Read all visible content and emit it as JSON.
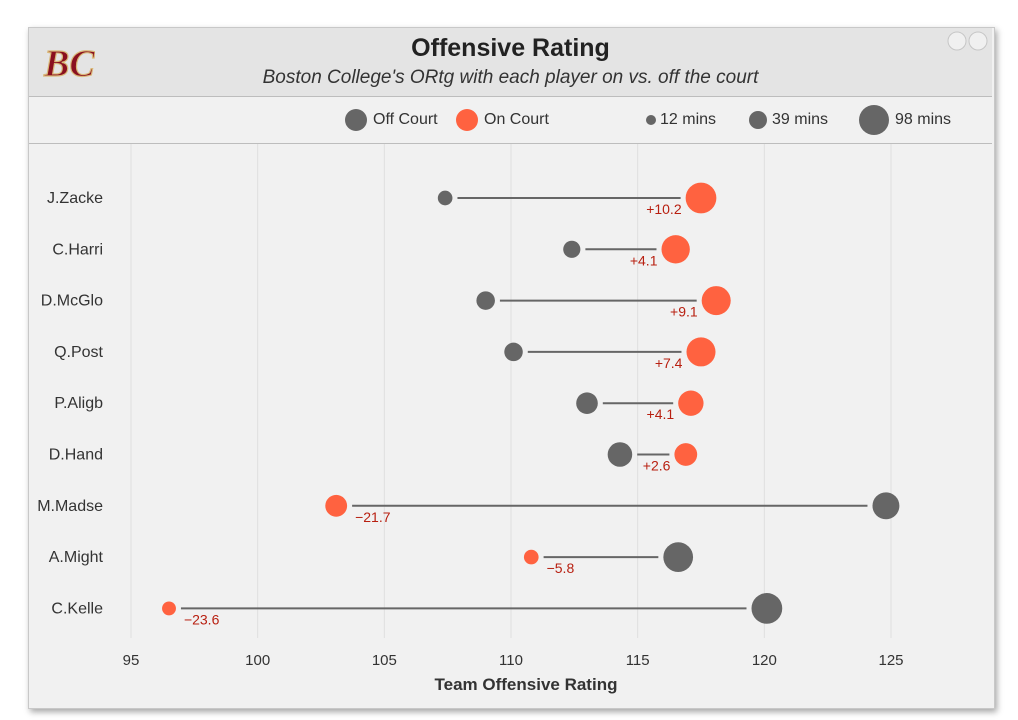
{
  "header": {
    "title": "Offensive Rating",
    "subtitle": "Boston College's ORtg with each player on vs. off the court",
    "logo_text": "BC"
  },
  "legend": {
    "off_label": "Off Court",
    "on_label": "On Court",
    "size_labels": [
      "12 mins",
      "39 mins",
      "98 mins"
    ]
  },
  "colors": {
    "off": "#666666",
    "on": "#ff6240",
    "diff_text": "#b81f10",
    "line": "#666666",
    "logo": "#8a1020"
  },
  "chart_data": {
    "type": "dumbbell",
    "title": "Offensive Rating",
    "subtitle": "Boston College's ORtg with each player on vs. off the court",
    "xlabel": "Team Offensive Rating",
    "ylabel": "",
    "xlim": [
      93,
      128
    ],
    "xticks": [
      95,
      100,
      105,
      110,
      115,
      120,
      125
    ],
    "grid": true,
    "size_legend_minutes": [
      12,
      39,
      98
    ],
    "players": [
      {
        "name": "J.Zacke",
        "off": 107.4,
        "on": 117.5,
        "diff": "+10.2",
        "off_minutes": 12,
        "on_minutes": 98
      },
      {
        "name": "C.Harri",
        "off": 112.4,
        "on": 116.5,
        "diff": "+4.1",
        "off_minutes": 20,
        "on_minutes": 80
      },
      {
        "name": "D.McGlo",
        "off": 109.0,
        "on": 118.1,
        "diff": "+9.1",
        "off_minutes": 25,
        "on_minutes": 85
      },
      {
        "name": "Q.Post",
        "off": 110.1,
        "on": 117.5,
        "diff": "+7.4",
        "off_minutes": 25,
        "on_minutes": 85
      },
      {
        "name": "P.Aligb",
        "off": 113.0,
        "on": 117.1,
        "diff": "+4.1",
        "off_minutes": 39,
        "on_minutes": 60
      },
      {
        "name": "D.Hand",
        "off": 114.3,
        "on": 116.9,
        "diff": "+2.6",
        "off_minutes": 55,
        "on_minutes": 45
      },
      {
        "name": "M.Madse",
        "off": 124.8,
        "on": 103.1,
        "diff": "−21.7",
        "off_minutes": 70,
        "on_minutes": 40
      },
      {
        "name": "A.Might",
        "off": 116.6,
        "on": 110.8,
        "diff": "−5.8",
        "off_minutes": 90,
        "on_minutes": 12
      },
      {
        "name": "C.Kelle",
        "off": 120.1,
        "on": 96.5,
        "diff": "−23.6",
        "off_minutes": 98,
        "on_minutes": 10
      }
    ]
  }
}
